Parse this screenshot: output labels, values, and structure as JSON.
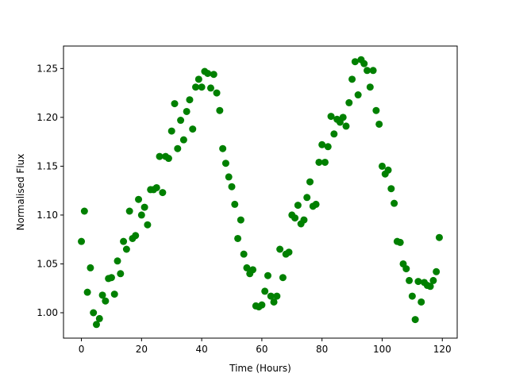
{
  "chart_data": {
    "type": "scatter",
    "x_label": "Time (Hours)",
    "y_label": "Normalised Flux",
    "color": "#008000",
    "grid": false,
    "xlim": [
      -5.95,
      124.95
    ],
    "ylim": [
      0.974,
      1.273
    ],
    "xticks": [
      0,
      20,
      40,
      60,
      80,
      100,
      120
    ],
    "yticks": [
      {
        "value": 1.0,
        "label": "1.00"
      },
      1.05,
      {
        "value": 1.1,
        "label": "1.10"
      },
      1.15,
      {
        "value": 1.2,
        "label": "1.20"
      },
      1.25
    ],
    "x": [
      0,
      1,
      2,
      3,
      4,
      5,
      6,
      7,
      8,
      9,
      10,
      11,
      12,
      13,
      14,
      15,
      16,
      17,
      18,
      19,
      20,
      21,
      22,
      23,
      24,
      25,
      26,
      27,
      28,
      29,
      30,
      31,
      32,
      33,
      34,
      35,
      36,
      37,
      38,
      39,
      40,
      41,
      42,
      43,
      44,
      45,
      46,
      47,
      48,
      49,
      50,
      51,
      52,
      53,
      54,
      55,
      56,
      57,
      58,
      59,
      60,
      61,
      62,
      63,
      64,
      65,
      66,
      67,
      68,
      69,
      70,
      71,
      72,
      73,
      74,
      75,
      76,
      77,
      78,
      79,
      80,
      81,
      82,
      83,
      84,
      85,
      86,
      87,
      88,
      89,
      90,
      91,
      92,
      93,
      94,
      95,
      96,
      97,
      98,
      99,
      100,
      101,
      102,
      103,
      104,
      105,
      106,
      107,
      108,
      109,
      110,
      111,
      112,
      113,
      114,
      115,
      116,
      117,
      118,
      119
    ],
    "values": [
      1.073,
      1.104,
      1.021,
      1.046,
      1.0,
      0.988,
      0.994,
      1.018,
      1.012,
      1.035,
      1.036,
      1.019,
      1.053,
      1.04,
      1.073,
      1.065,
      1.104,
      1.076,
      1.079,
      1.116,
      1.1,
      1.108,
      1.09,
      1.126,
      1.126,
      1.128,
      1.16,
      1.123,
      1.16,
      1.158,
      1.186,
      1.214,
      1.168,
      1.197,
      1.177,
      1.206,
      1.218,
      1.188,
      1.231,
      1.239,
      1.231,
      1.247,
      1.245,
      1.23,
      1.244,
      1.225,
      1.207,
      1.168,
      1.153,
      1.139,
      1.129,
      1.111,
      1.076,
      1.095,
      1.06,
      1.046,
      1.04,
      1.044,
      1.007,
      1.006,
      1.008,
      1.022,
      1.038,
      1.017,
      1.011,
      1.017,
      1.065,
      1.036,
      1.06,
      1.062,
      1.1,
      1.097,
      1.11,
      1.091,
      1.095,
      1.118,
      1.134,
      1.109,
      1.111,
      1.154,
      1.172,
      1.154,
      1.17,
      1.201,
      1.183,
      1.198,
      1.195,
      1.2,
      1.191,
      1.215,
      1.239,
      1.257,
      1.223,
      1.259,
      1.255,
      1.248,
      1.231,
      1.248,
      1.207,
      1.193,
      1.15,
      1.142,
      1.146,
      1.127,
      1.112,
      1.073,
      1.072,
      1.05,
      1.045,
      1.033,
      1.017,
      0.993,
      1.032,
      1.011,
      1.031,
      1.028,
      1.027,
      1.033,
      1.042,
      1.077
    ]
  }
}
